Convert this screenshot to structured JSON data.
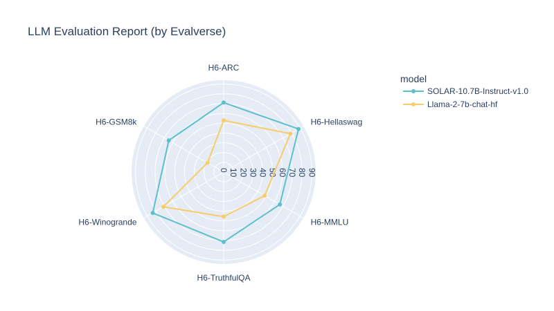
{
  "chart_data": {
    "type": "radar",
    "title": "LLM Evaluation Report (by Evalverse)",
    "categories": [
      "H6-ARC",
      "H6-Hellaswag",
      "H6-MMLU",
      "H6-TruthfulQA",
      "H6-Winogrande",
      "H6-GSM8k"
    ],
    "radial_ticks": [
      "0",
      "10",
      "20",
      "30",
      "40",
      "50",
      "60",
      "70",
      "80",
      "90"
    ],
    "radial_range": [
      0,
      94
    ],
    "legend_title": "model",
    "series": [
      {
        "name": "SOLAR-10.7B-Instruct-v1.0",
        "color": "#5bc0ca",
        "values": [
          71.1,
          88.2,
          66.2,
          71.4,
          83.6,
          64.7
        ]
      },
      {
        "name": "Llama-2-7b-chat-hf",
        "color": "#f9cc6a",
        "values": [
          52.9,
          78.6,
          48.3,
          45.6,
          71.0,
          19.0
        ]
      }
    ]
  }
}
